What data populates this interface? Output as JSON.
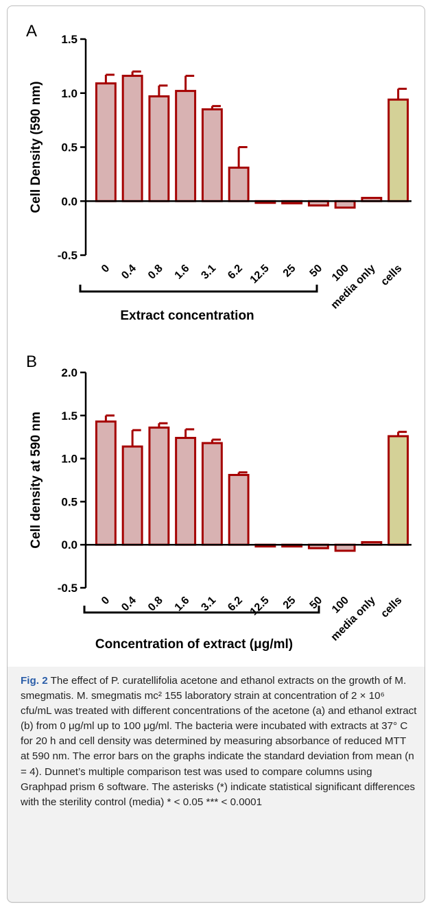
{
  "panels": [
    {
      "panel_label": "A",
      "ylabel": "Cell Density (590 nm)",
      "xlabel": "Extract concentration",
      "yticks": [
        "1.5",
        "1.0",
        "0.5",
        "0.0",
        "-0.5"
      ]
    },
    {
      "panel_label": "B",
      "ylabel": "Cell density at 590 nm",
      "xlabel": "Concentration of extract (μg/ml)",
      "yticks": [
        "2.0",
        "1.5",
        "1.0",
        "0.5",
        "0.0",
        "-0.5"
      ]
    }
  ],
  "chart_data": [
    {
      "type": "bar",
      "panel": "A",
      "categories": [
        "0",
        "0.4",
        "0.8",
        "1.6",
        "3.1",
        "6.2",
        "12.5",
        "25",
        "50",
        "100",
        "media only",
        "cells"
      ],
      "values": [
        1.09,
        1.16,
        0.97,
        1.02,
        0.85,
        0.31,
        -0.01,
        -0.02,
        -0.04,
        -0.06,
        0.03,
        0.94
      ],
      "errors": [
        0.08,
        0.04,
        0.1,
        0.14,
        0.03,
        0.19,
        0.0,
        0.0,
        0.0,
        0.0,
        0.0,
        0.1
      ],
      "ylim": [
        -0.5,
        1.5
      ],
      "ylabel": "Cell Density (590 nm)",
      "xlabel": "Extract concentration",
      "colors": {
        "bar_fill": "#d8b2b2",
        "control_fill": "#d4d197",
        "edge": "#a50000"
      }
    },
    {
      "type": "bar",
      "panel": "B",
      "categories": [
        "0",
        "0.4",
        "0.8",
        "1.6",
        "3.1",
        "6.2",
        "12.5",
        "25",
        "50",
        "100",
        "media only",
        "cells"
      ],
      "values": [
        1.43,
        1.14,
        1.36,
        1.24,
        1.18,
        0.81,
        -0.01,
        -0.02,
        -0.04,
        -0.07,
        0.03,
        1.26
      ],
      "errors": [
        0.07,
        0.19,
        0.05,
        0.1,
        0.04,
        0.03,
        0.0,
        0.0,
        0.0,
        0.0,
        0.0,
        0.05
      ],
      "ylim": [
        -0.5,
        2.0
      ],
      "ylabel": "Cell density at 590 nm",
      "xlabel": "Concentration of extract (μg/ml)",
      "colors": {
        "bar_fill": "#d8b2b2",
        "control_fill": "#d4d197",
        "edge": "#a50000"
      }
    }
  ],
  "caption": {
    "fig_label": "Fig. 2",
    "text": "The effect of P. curatellifolia acetone and ethanol extracts on the growth of M. smegmatis. M. smegmatis mc² 155 laboratory strain at concentration of 2 × 10⁶ cfu/mL was treated with different concentrations of the acetone (a) and ethanol extract (b) from 0 μg/ml up to 100 μg/ml. The bacteria were incubated with extracts at 37° C for 20 h and cell density was determined by measuring absorbance of reduced MTT at 590 nm. The error bars on the graphs indicate the standard deviation from mean (n = 4). Dunnet’s multiple comparison test was used to compare columns using Graphpad prism 6 software. The asterisks (*) indicate statistical significant differences with the sterility control (media) * < 0.05 *** < 0.0001"
  }
}
